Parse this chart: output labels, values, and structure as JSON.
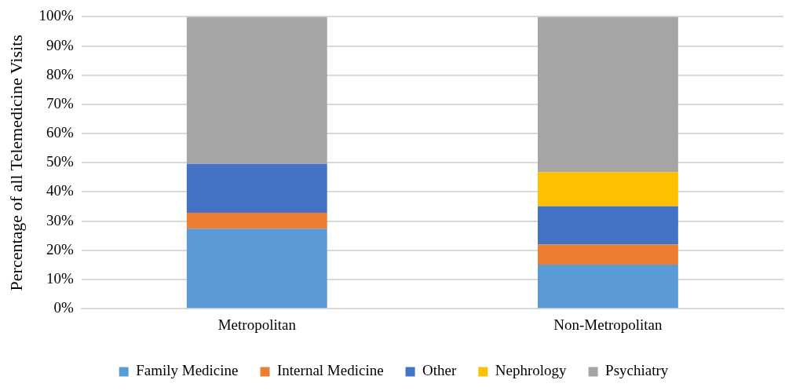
{
  "chart_data": {
    "type": "bar",
    "stacked": true,
    "ylabel": "Percentage of all Telemedicine Visits",
    "categories": [
      "Metropolitan",
      "Non-Metropolitan"
    ],
    "series": [
      {
        "name": "Family Medicine",
        "color": "#5b9bd5",
        "values": [
          27.4,
          15.1
        ]
      },
      {
        "name": "Internal Medicine",
        "color": "#ed7d31",
        "values": [
          5.5,
          6.9
        ]
      },
      {
        "name": "Other",
        "color": "#4472c4",
        "values": [
          16.7,
          13.1
        ]
      },
      {
        "name": "Nephrology",
        "color": "#ffc000",
        "values": [
          0,
          11.7
        ]
      },
      {
        "name": "Psychiatry",
        "color": "#a5a5a5",
        "values": [
          50.4,
          53.2
        ]
      }
    ],
    "ylim": [
      0,
      100
    ],
    "yticks": [
      {
        "value": 0,
        "label": "0%"
      },
      {
        "value": 10,
        "label": "10%"
      },
      {
        "value": 20,
        "label": "20%"
      },
      {
        "value": 30,
        "label": "30%"
      },
      {
        "value": 40,
        "label": "40%"
      },
      {
        "value": 50,
        "label": "50%"
      },
      {
        "value": 60,
        "label": "60%"
      },
      {
        "value": 70,
        "label": "70%"
      },
      {
        "value": 80,
        "label": "80%"
      },
      {
        "value": 90,
        "label": "90%"
      },
      {
        "value": 100,
        "label": "100%"
      }
    ],
    "grid": "y",
    "legend": "bottom"
  }
}
